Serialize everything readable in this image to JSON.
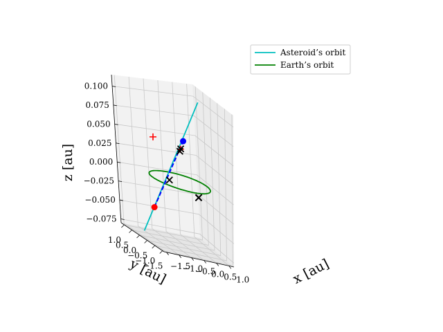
{
  "chart_data": {
    "type": "line3d",
    "title": "",
    "xlabel": "x [au]",
    "ylabel": "y [au]",
    "zlabel": "z [au]",
    "xlim": [
      -1.6,
      1.2
    ],
    "ylim": [
      -1.6,
      1.2
    ],
    "zlim": [
      -0.08,
      0.115
    ],
    "x_ticks": [
      "−1.5",
      "−1.0",
      "−0.5",
      "0.0",
      "0.5",
      "1.0"
    ],
    "y_ticks": [
      "1.0",
      "0.5",
      "0.0",
      "−0.5",
      "−1.0",
      "−1.5"
    ],
    "z_ticks": [
      "0.100",
      "0.075",
      "0.050",
      "0.025",
      "0.000",
      "−0.025",
      "−0.050",
      "−0.075"
    ],
    "grid": true,
    "legend_position": "top-right",
    "colors": {
      "asteroid": "#00bfbf",
      "earth": "#008000",
      "segment": "#0000ff",
      "marker_red": "#ff0000",
      "marker_blue": "#0000ff",
      "marker_black": "#000000"
    },
    "series": [
      {
        "name": "Asteroid’s orbit",
        "points": [
          [
            -1.55,
            -0.25,
            -0.07
          ],
          [
            1.05,
            0.58,
            0.1
          ]
        ]
      },
      {
        "name": "Earth’s orbit",
        "circle": {
          "radius": 1.0,
          "z": 0.0
        }
      }
    ],
    "segment": {
      "points": [
        [
          -1.05,
          -0.09,
          -0.038
        ],
        [
          0.35,
          0.36,
          0.05
        ]
      ]
    },
    "markers": [
      {
        "shape": "circle",
        "color": "red",
        "point": [
          -1.05,
          -0.09,
          -0.038
        ]
      },
      {
        "shape": "circle",
        "color": "blue",
        "point": [
          0.35,
          0.36,
          0.05
        ]
      },
      {
        "shape": "plus",
        "color": "red",
        "point": [
          -0.55,
          0.7,
          0.046
        ]
      },
      {
        "shape": "plus",
        "color": "red",
        "point": [
          0.2,
          0.28,
          0.04
        ]
      },
      {
        "shape": "x",
        "color": "black",
        "point": [
          -0.38,
          0.04,
          0.0
        ]
      },
      {
        "shape": "x",
        "color": "black",
        "point": [
          0.23,
          0.32,
          0.04
        ]
      },
      {
        "shape": "x",
        "color": "black",
        "point": [
          0.18,
          0.29,
          0.037
        ]
      },
      {
        "shape": "x",
        "color": "black",
        "point": [
          0.37,
          -0.57,
          -0.01
        ]
      },
      {
        "shape": "x",
        "color": "black",
        "point": [
          0.39,
          -0.55,
          -0.01
        ]
      }
    ]
  }
}
